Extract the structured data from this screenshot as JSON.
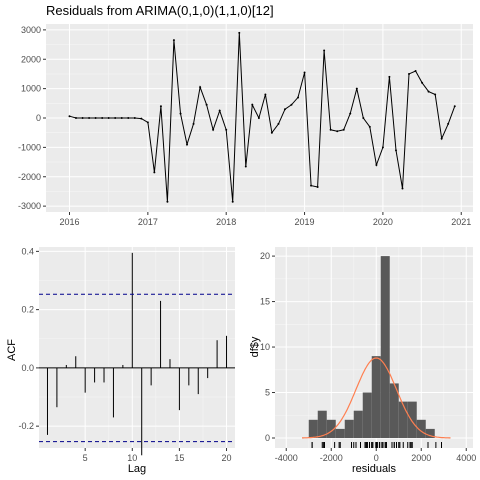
{
  "title": "Residuals from ARIMA(0,1,0)(1,1,0)[12]",
  "colors": {
    "panel": "#ebebeb",
    "line": "#000000",
    "ci": "#00008b",
    "bars": "#595959",
    "density": "#ff7f50"
  },
  "chart_data": [
    {
      "type": "line",
      "name": "residual-time-series",
      "xlim": [
        2015.7,
        2021.15
      ],
      "ylim": [
        -3200,
        3200
      ],
      "x_ticks": [
        2016,
        2017,
        2018,
        2019,
        2020,
        2021
      ],
      "x_tick_labels": [
        "2016",
        "2017",
        "2018",
        "2019",
        "2020",
        "2021"
      ],
      "y_ticks": [
        -3000,
        -2000,
        -1000,
        0,
        1000,
        2000,
        3000
      ],
      "y_tick_labels": [
        "-3000",
        "-2000",
        "-1000",
        "0",
        "1000",
        "2000",
        "3000"
      ],
      "x": [
        2016.0,
        2016.083,
        2016.167,
        2016.25,
        2016.333,
        2016.417,
        2016.5,
        2016.583,
        2016.667,
        2016.75,
        2016.833,
        2016.917,
        2017.0,
        2017.083,
        2017.167,
        2017.25,
        2017.333,
        2017.417,
        2017.5,
        2017.583,
        2017.667,
        2017.75,
        2017.833,
        2017.917,
        2018.0,
        2018.083,
        2018.167,
        2018.25,
        2018.333,
        2018.417,
        2018.5,
        2018.583,
        2018.667,
        2018.75,
        2018.833,
        2018.917,
        2019.0,
        2019.083,
        2019.167,
        2019.25,
        2019.333,
        2019.417,
        2019.5,
        2019.583,
        2019.667,
        2019.75,
        2019.833,
        2019.917,
        2020.0,
        2020.083,
        2020.167,
        2020.25,
        2020.333,
        2020.417,
        2020.5,
        2020.583,
        2020.667,
        2020.75,
        2020.833,
        2020.917
      ],
      "y": [
        60,
        0,
        0,
        0,
        0,
        0,
        0,
        0,
        0,
        0,
        0,
        -20,
        -150,
        -1850,
        400,
        -2850,
        2650,
        150,
        -900,
        -200,
        1050,
        450,
        -400,
        250,
        -400,
        -2850,
        2900,
        -1650,
        450,
        0,
        800,
        -500,
        -200,
        300,
        450,
        700,
        1550,
        -2300,
        -2350,
        2300,
        -400,
        -450,
        -400,
        150,
        1000,
        0,
        -300,
        -1600,
        -1000,
        1400,
        -1100,
        -2400,
        1500,
        1600,
        1200,
        900,
        800,
        -700,
        -200,
        400
      ]
    },
    {
      "type": "bar",
      "name": "acf",
      "xlabel": "Lag",
      "ylabel": "ACF",
      "xlim": [
        0.1,
        20.9
      ],
      "ylim": [
        -0.275,
        0.415
      ],
      "x_ticks": [
        5,
        10,
        15,
        20
      ],
      "x_tick_labels": [
        "5",
        "10",
        "15",
        "20"
      ],
      "y_ticks": [
        -0.2,
        0.0,
        0.2,
        0.4
      ],
      "y_tick_labels": [
        "-0.2",
        "0.0",
        "0.2",
        "0.4"
      ],
      "lags": [
        1,
        2,
        3,
        4,
        5,
        6,
        7,
        8,
        9,
        10,
        11,
        12,
        13,
        14,
        15,
        16,
        17,
        18,
        19,
        20
      ],
      "values": [
        -0.23,
        -0.135,
        0.01,
        0.04,
        -0.085,
        -0.05,
        -0.05,
        -0.17,
        0.01,
        0.395,
        -0.3,
        -0.06,
        0.23,
        0.03,
        -0.145,
        -0.06,
        -0.09,
        -0.035,
        0.095,
        0.11
      ],
      "ci": 0.253
    },
    {
      "type": "bar",
      "name": "residual-histogram",
      "xlabel": "residuals",
      "ylabel": "df$y",
      "xlim": [
        -4500,
        4300
      ],
      "ylim": [
        -1.1,
        21
      ],
      "x_ticks": [
        -4000,
        -2000,
        0,
        2000,
        4000
      ],
      "x_tick_labels": [
        "-4000",
        "-2000",
        "0",
        "2000",
        "4000"
      ],
      "y_ticks": [
        0,
        5,
        10,
        15,
        20
      ],
      "y_tick_labels": [
        "0",
        "5",
        "10",
        "15",
        "20"
      ],
      "bin_width": 400,
      "bins_start": [
        -3000,
        -2600,
        -2200,
        -1800,
        -1400,
        -1000,
        -600,
        -200,
        200,
        600,
        1000,
        1400,
        1800,
        2200,
        2600
      ],
      "counts": [
        2,
        3,
        2,
        1,
        2,
        3,
        5,
        9,
        20,
        6,
        4,
        4,
        2,
        1,
        0
      ],
      "density": {
        "mean": 0,
        "sd": 900,
        "peak_count": 8.8
      },
      "rug": [
        -2850,
        -2850,
        -2400,
        -2350,
        -2300,
        -1850,
        -1650,
        -1600,
        -1100,
        -1000,
        -900,
        -700,
        -500,
        -450,
        -400,
        -400,
        -400,
        -300,
        -200,
        -200,
        -150,
        -20,
        0,
        0,
        0,
        0,
        0,
        0,
        0,
        0,
        0,
        0,
        60,
        150,
        150,
        250,
        300,
        400,
        400,
        450,
        450,
        700,
        800,
        800,
        900,
        1000,
        1050,
        1200,
        1400,
        1500,
        1550,
        1600,
        2300,
        2650,
        2900
      ]
    }
  ]
}
